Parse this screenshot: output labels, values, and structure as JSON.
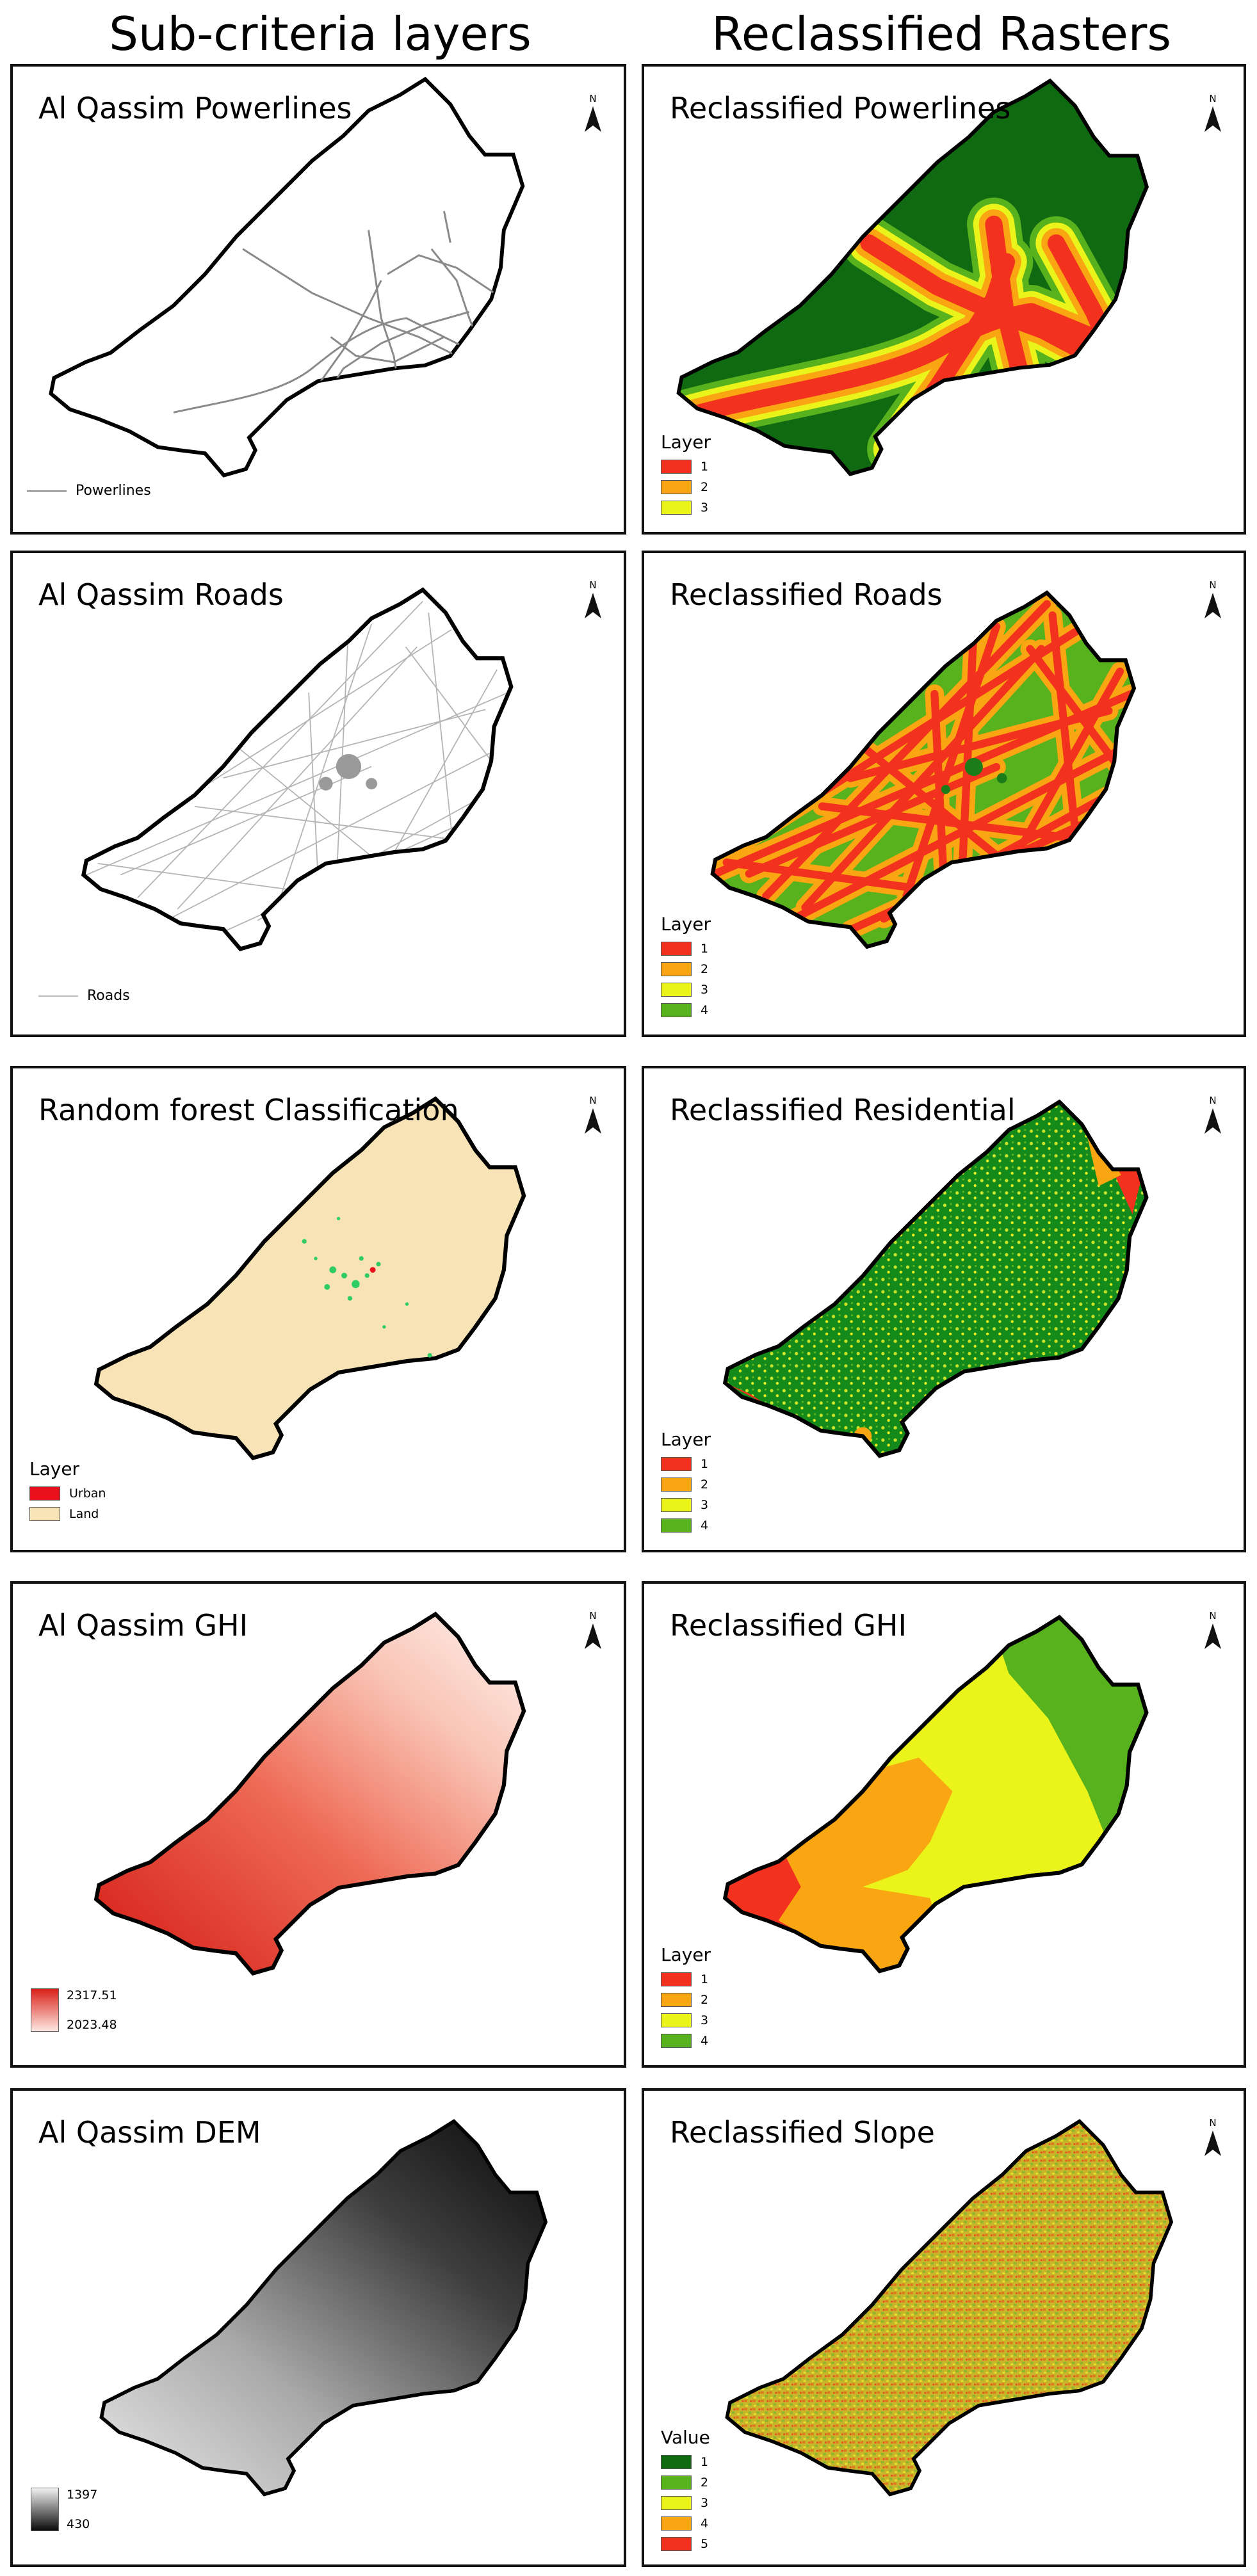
{
  "headers": {
    "left": "Sub-criteria layers",
    "right": "Reclassified Rasters"
  },
  "north_label": "N",
  "colors": {
    "class1": "#f2321e",
    "class2": "#f9a612",
    "class3": "#ebf41a",
    "class4": "#58b21d",
    "class5": "#f2321e",
    "dark_green": "#0f6a12",
    "urban": "#e8101a",
    "land": "#f7e3b5",
    "ghi_high": "#d9211a",
    "ghi_low": "#fde8e2",
    "dem_high": "#f2f2f2",
    "dem_low": "#0a0a0a",
    "line_gray": "#8a8a8a"
  },
  "panels": {
    "powerlines": {
      "title": "Al Qassim Powerlines",
      "legend_label": "Powerlines"
    },
    "reclass_powerlines": {
      "title": "Reclassified Powerlines",
      "legend_title": "Layer",
      "legend": [
        {
          "label": "1",
          "color": "#f2321e"
        },
        {
          "label": "2",
          "color": "#f9a612"
        },
        {
          "label": "3",
          "color": "#ebf41a"
        }
      ]
    },
    "roads": {
      "title": "Al Qassim Roads",
      "legend_label": "Roads"
    },
    "reclass_roads": {
      "title": "Reclassified Roads",
      "legend_title": "Layer",
      "legend": [
        {
          "label": "1",
          "color": "#f2321e"
        },
        {
          "label": "2",
          "color": "#f9a612"
        },
        {
          "label": "3",
          "color": "#ebf41a"
        },
        {
          "label": "4",
          "color": "#58b21d"
        }
      ]
    },
    "rf": {
      "title": "Random forest Classification",
      "legend_title": "Layer",
      "legend": [
        {
          "label": "Urban",
          "color": "#e8101a"
        },
        {
          "label": "Land",
          "color": "#f7e3b5"
        }
      ]
    },
    "reclass_residential": {
      "title": "Reclassified Residential",
      "legend_title": "Layer",
      "legend": [
        {
          "label": "1",
          "color": "#f2321e"
        },
        {
          "label": "2",
          "color": "#f9a612"
        },
        {
          "label": "3",
          "color": "#ebf41a"
        },
        {
          "label": "4",
          "color": "#58b21d"
        }
      ]
    },
    "ghi": {
      "title": "Al Qassim GHI",
      "legend_high": "2317.51",
      "legend_low": "2023.48"
    },
    "reclass_ghi": {
      "title": "Reclassified GHI",
      "legend_title": "Layer",
      "legend": [
        {
          "label": "1",
          "color": "#f2321e"
        },
        {
          "label": "2",
          "color": "#f9a612"
        },
        {
          "label": "3",
          "color": "#ebf41a"
        },
        {
          "label": "4",
          "color": "#58b21d"
        }
      ]
    },
    "dem": {
      "title": "Al Qassim DEM",
      "legend_high": "1397",
      "legend_low": "430"
    },
    "reclass_slope": {
      "title": "Reclassified Slope",
      "legend_title": "Value",
      "legend": [
        {
          "label": "1",
          "color": "#0f6a12"
        },
        {
          "label": "2",
          "color": "#58b21d"
        },
        {
          "label": "3",
          "color": "#ebf41a"
        },
        {
          "label": "4",
          "color": "#f9a612"
        },
        {
          "label": "5",
          "color": "#f2321e"
        }
      ]
    }
  }
}
